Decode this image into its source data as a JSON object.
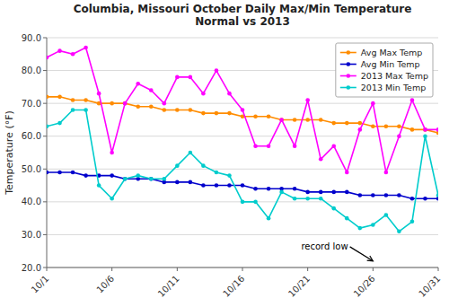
{
  "chart_data": {
    "type": "line",
    "title": "Columbia, Missouri October Daily Max/Min Temperature\nNormal vs 2013",
    "y_label": "Temperature (°F)",
    "x": [
      1,
      2,
      3,
      4,
      5,
      6,
      7,
      8,
      9,
      10,
      11,
      12,
      13,
      14,
      15,
      16,
      17,
      18,
      19,
      20,
      21,
      22,
      23,
      24,
      25,
      26,
      27,
      28,
      29,
      30,
      31
    ],
    "series": [
      {
        "name": "Avg Max Temp",
        "color": "#FF8C00",
        "values": [
          72,
          72,
          71,
          71,
          70,
          70,
          70,
          69,
          69,
          68,
          68,
          68,
          67,
          67,
          67,
          66,
          66,
          66,
          65,
          65,
          65,
          65,
          64,
          64,
          64,
          63,
          63,
          63,
          62,
          62,
          61
        ]
      },
      {
        "name": "Avg Min Temp",
        "color": "#0000CC",
        "values": [
          49,
          49,
          49,
          48,
          48,
          48,
          47,
          47,
          47,
          46,
          46,
          46,
          45,
          45,
          45,
          45,
          44,
          44,
          44,
          44,
          43,
          43,
          43,
          43,
          42,
          42,
          42,
          42,
          41,
          41,
          41
        ]
      },
      {
        "name": "2013 Max Temp",
        "color": "#FF00FF",
        "values": [
          84,
          86,
          85,
          87,
          73,
          55,
          70,
          76,
          74,
          70,
          78,
          78,
          73,
          80,
          73,
          68,
          57,
          57,
          65,
          57,
          71,
          53,
          57,
          49,
          62,
          70,
          49,
          60,
          71,
          62,
          62
        ]
      },
      {
        "name": "2013 Min Temp",
        "color": "#00CCCC",
        "values": [
          63,
          64,
          68,
          68,
          45,
          41,
          47,
          48,
          47,
          47,
          51,
          55,
          51,
          49,
          48,
          40,
          40,
          35,
          43,
          41,
          41,
          41,
          38,
          35,
          32,
          33,
          36,
          31,
          34,
          60,
          42
        ]
      }
    ],
    "xlim": [
      1,
      31
    ],
    "xticks": [
      {
        "value": 1,
        "label": "10/1"
      },
      {
        "value": 6,
        "label": "10/6"
      },
      {
        "value": 11,
        "label": "10/11"
      },
      {
        "value": 16,
        "label": "10/16"
      },
      {
        "value": 21,
        "label": "10/21"
      },
      {
        "value": 26,
        "label": "10/26"
      },
      {
        "value": 31,
        "label": "10/31"
      }
    ],
    "ylim": [
      20,
      90
    ],
    "yticks": [
      {
        "value": 20,
        "label": "20.0"
      },
      {
        "value": 30,
        "label": "30.0"
      },
      {
        "value": 40,
        "label": "40.0"
      },
      {
        "value": 50,
        "label": "50.0"
      },
      {
        "value": 60,
        "label": "60.0"
      },
      {
        "value": 70,
        "label": "70.0"
      },
      {
        "value": 80,
        "label": "80.0"
      },
      {
        "value": 90,
        "label": "90.0"
      }
    ],
    "annotations": [
      {
        "text": "record low",
        "x": 20.5,
        "y": 25.5,
        "arrow_x": 26,
        "arrow_y": 22
      }
    ],
    "marker": "circle",
    "grid": true,
    "legend": "upper right"
  }
}
